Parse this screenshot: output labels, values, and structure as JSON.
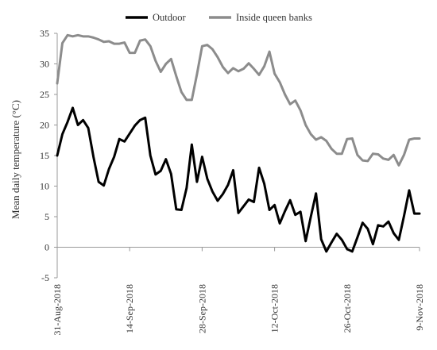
{
  "chart_data": {
    "type": "line",
    "title": "",
    "xlabel": "",
    "ylabel": "Mean daily temperature (°C)",
    "ylim": [
      -5,
      35
    ],
    "y_ticks": [
      -5,
      0,
      5,
      10,
      15,
      20,
      25,
      30,
      35
    ],
    "x_start": "2018-08-31",
    "x_end": "2018-11-09",
    "x_ticks": [
      "31-Aug-2018",
      "14-Sep-2018",
      "28-Sep-2018",
      "12-Oct-2018",
      "26-Oct-2018",
      "9-Nov-2018"
    ],
    "x_tick_dates": [
      "2018-08-31",
      "2018-09-14",
      "2018-09-28",
      "2018-10-12",
      "2018-10-26",
      "2018-11-09"
    ],
    "legend_position": "top",
    "grid": false,
    "dates": [
      "2018-08-31",
      "2018-09-01",
      "2018-09-02",
      "2018-09-03",
      "2018-09-04",
      "2018-09-05",
      "2018-09-06",
      "2018-09-07",
      "2018-09-08",
      "2018-09-09",
      "2018-09-10",
      "2018-09-11",
      "2018-09-12",
      "2018-09-13",
      "2018-09-14",
      "2018-09-15",
      "2018-09-16",
      "2018-09-17",
      "2018-09-18",
      "2018-09-19",
      "2018-09-20",
      "2018-09-21",
      "2018-09-22",
      "2018-09-23",
      "2018-09-24",
      "2018-09-25",
      "2018-09-26",
      "2018-09-27",
      "2018-09-28",
      "2018-09-29",
      "2018-09-30",
      "2018-10-01",
      "2018-10-02",
      "2018-10-03",
      "2018-10-04",
      "2018-10-05",
      "2018-10-06",
      "2018-10-07",
      "2018-10-08",
      "2018-10-09",
      "2018-10-10",
      "2018-10-11",
      "2018-10-12",
      "2018-10-13",
      "2018-10-14",
      "2018-10-15",
      "2018-10-16",
      "2018-10-17",
      "2018-10-18",
      "2018-10-19",
      "2018-10-20",
      "2018-10-21",
      "2018-10-22",
      "2018-10-23",
      "2018-10-24",
      "2018-10-25",
      "2018-10-26",
      "2018-10-27",
      "2018-10-28",
      "2018-10-29",
      "2018-10-30",
      "2018-10-31",
      "2018-11-01",
      "2018-11-02",
      "2018-11-03",
      "2018-11-04",
      "2018-11-05",
      "2018-11-06",
      "2018-11-07",
      "2018-11-08",
      "2018-11-09"
    ],
    "series": [
      {
        "name": "Outdoor",
        "color": "#000000",
        "values": [
          15.0,
          18.5,
          20.5,
          22.8,
          20.0,
          20.8,
          19.5,
          14.8,
          10.7,
          10.1,
          12.8,
          14.8,
          17.7,
          17.3,
          18.6,
          19.9,
          20.8,
          21.2,
          15.0,
          11.9,
          12.5,
          14.4,
          12.0,
          6.2,
          6.1,
          9.7,
          16.8,
          10.7,
          14.8,
          11.2,
          9.1,
          7.6,
          8.7,
          10.2,
          12.6,
          5.6,
          6.7,
          7.8,
          7.4,
          13.0,
          10.4,
          6.1,
          6.9,
          3.9,
          5.9,
          7.7,
          5.3,
          5.8,
          1.0,
          5.0,
          8.8,
          1.3,
          -0.7,
          0.8,
          2.2,
          1.2,
          -0.3,
          -0.7,
          1.6,
          4.0,
          3.0,
          0.5,
          3.6,
          3.4,
          4.2,
          2.3,
          1.2,
          5.1,
          9.3,
          5.5,
          5.5
        ]
      },
      {
        "name": "Inside queen banks",
        "color": "#8c8c8c",
        "values": [
          26.8,
          33.4,
          34.7,
          34.5,
          34.7,
          34.5,
          34.5,
          34.3,
          34.0,
          33.6,
          33.7,
          33.3,
          33.3,
          33.5,
          31.8,
          31.8,
          33.8,
          34.0,
          32.9,
          30.5,
          28.7,
          30.0,
          30.8,
          28.0,
          25.4,
          24.1,
          24.1,
          28.3,
          32.9,
          33.1,
          32.4,
          31.1,
          29.5,
          28.5,
          29.3,
          28.8,
          29.2,
          30.1,
          29.2,
          28.2,
          29.6,
          32.0,
          28.4,
          27.0,
          25.0,
          23.4,
          24.0,
          22.4,
          20.0,
          18.5,
          17.6,
          18.0,
          17.4,
          16.1,
          15.3,
          15.3,
          17.7,
          17.8,
          15.1,
          14.2,
          14.1,
          15.3,
          15.2,
          14.5,
          14.3,
          15.1,
          13.4,
          15.1,
          17.6,
          17.8,
          17.8
        ]
      }
    ]
  }
}
